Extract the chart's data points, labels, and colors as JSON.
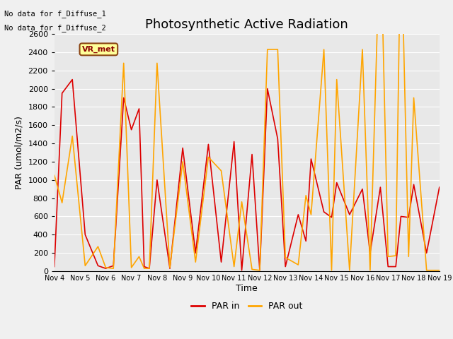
{
  "title": "Photosynthetic Active Radiation",
  "ylabel": "PAR (umol/m2/s)",
  "xlabel": "Time",
  "annotation_lines": [
    "No data for f_Diffuse_1",
    "No data for f_Diffuse_2"
  ],
  "legend_label": "VR_met",
  "legend_box_color": "#ffff99",
  "legend_box_border": "#8B4513",
  "series": {
    "PAR in": {
      "color": "#dd0000",
      "x": [
        4,
        4.3,
        4.7,
        5.2,
        5.7,
        6.0,
        6.3,
        6.7,
        7.0,
        7.3,
        7.5,
        7.7,
        8.0,
        8.5,
        9.0,
        9.5,
        10.0,
        10.5,
        11.0,
        11.3,
        11.7,
        12.0,
        12.3,
        12.7,
        13.0,
        13.5,
        13.8,
        14.0,
        14.5,
        14.8,
        15.0,
        15.5,
        16.0,
        16.3,
        16.7,
        17.0,
        17.3,
        17.5,
        17.8,
        18.0,
        18.5,
        19.0
      ],
      "y": [
        50,
        1950,
        2100,
        400,
        60,
        30,
        60,
        1900,
        1550,
        1780,
        50,
        30,
        1000,
        30,
        1350,
        200,
        1390,
        100,
        1420,
        10,
        1280,
        10,
        2000,
        1450,
        50,
        620,
        330,
        1230,
        650,
        590,
        970,
        620,
        900,
        200,
        920,
        50,
        50,
        600,
        590,
        950,
        200,
        920
      ]
    },
    "PAR out": {
      "color": "#ffa500",
      "x": [
        4,
        4.3,
        4.7,
        5.2,
        5.7,
        6.0,
        6.3,
        6.7,
        7.0,
        7.3,
        7.5,
        7.7,
        8.0,
        8.5,
        9.0,
        9.5,
        10.0,
        10.5,
        11.0,
        11.3,
        11.7,
        12.0,
        12.3,
        12.7,
        13.0,
        13.5,
        13.8,
        14.0,
        14.5,
        14.8,
        15.0,
        15.5,
        16.0,
        16.3,
        16.7,
        17.0,
        17.3,
        17.5,
        17.8,
        18.0,
        18.5,
        19.0
      ],
      "y": [
        1050,
        750,
        1480,
        60,
        270,
        40,
        30,
        2280,
        40,
        160,
        30,
        30,
        2280,
        40,
        1200,
        100,
        1250,
        1100,
        50,
        760,
        20,
        10,
        2430,
        2430,
        150,
        70,
        830,
        620,
        2430,
        10,
        2100,
        10,
        2430,
        10,
        3820,
        160,
        170,
        3820,
        160,
        1900,
        10,
        10
      ]
    }
  },
  "ylim": [
    0,
    2600
  ],
  "xlim": [
    4,
    19
  ],
  "xtick_positions": [
    4,
    5,
    6,
    7,
    8,
    9,
    10,
    11,
    12,
    13,
    14,
    15,
    16,
    17,
    18,
    19
  ],
  "xtick_labels": [
    "Nov 4",
    "Nov 5",
    "Nov 6",
    "Nov 7",
    "Nov 8",
    "Nov 9",
    "Nov 10",
    "Nov 11",
    "Nov 12",
    "Nov 13",
    "Nov 14",
    "Nov 15",
    "Nov 16",
    "Nov 17",
    "Nov 18",
    "Nov 19"
  ],
  "ytick_positions": [
    0,
    200,
    400,
    600,
    800,
    1000,
    1200,
    1400,
    1600,
    1800,
    2000,
    2200,
    2400,
    2600
  ],
  "background_color": "#f0f0f0",
  "plot_bg_color": "#e8e8e8",
  "grid_color": "#ffffff",
  "title_fontsize": 13,
  "axis_fontsize": 9,
  "tick_fontsize": 8
}
